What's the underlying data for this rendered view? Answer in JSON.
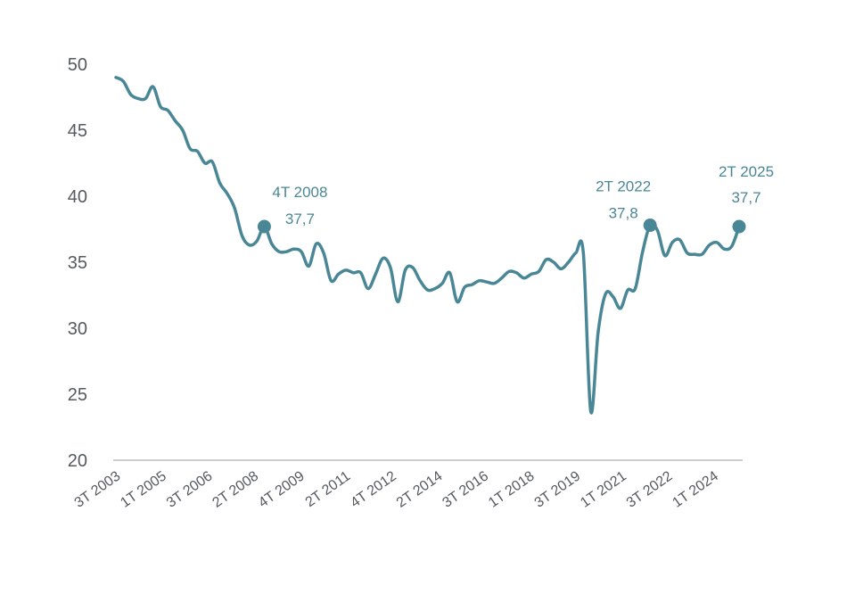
{
  "chart_data": {
    "type": "line",
    "title": "",
    "xlabel": "",
    "ylabel": "",
    "ylim": [
      20,
      50
    ],
    "y_ticks": [
      "20",
      "25",
      "30",
      "35",
      "40",
      "45",
      "50"
    ],
    "x_tick_labels": [
      "3T 2003",
      "1T 2005",
      "3T 2006",
      "2T 2008",
      "4T 2009",
      "2T 2011",
      "4T 2012",
      "2T 2014",
      "3T 2016",
      "1T 2018",
      "3T 2019",
      "1T 2021",
      "3T 2022",
      "1T 2024"
    ],
    "grid": false,
    "legend": "none",
    "colors": {
      "line": "#4a8796",
      "axis": "#cccccc",
      "text": "#555a60"
    },
    "series": [
      {
        "values": [
          49.0,
          48.7,
          47.7,
          47.4,
          47.4,
          48.3,
          46.8,
          46.5,
          45.7,
          45.0,
          43.6,
          43.4,
          42.5,
          42.6,
          41.0,
          40.2,
          39.1,
          37.0,
          36.3,
          36.6,
          37.7,
          36.4,
          35.8,
          35.8,
          36.0,
          35.8,
          34.7,
          36.4,
          35.7,
          33.6,
          34.1,
          34.4,
          34.2,
          34.2,
          33.0,
          34.1,
          35.3,
          34.6,
          32.0,
          34.4,
          34.6,
          33.6,
          32.9,
          33.0,
          33.4,
          34.2,
          32.0,
          33.1,
          33.3,
          33.6,
          33.5,
          33.4,
          33.8,
          34.3,
          34.2,
          33.8,
          34.1,
          34.3,
          35.2,
          35.0,
          34.5,
          35.0,
          35.7,
          35.7,
          23.7,
          29.7,
          32.6,
          32.4,
          31.5,
          32.9,
          33.0,
          35.8,
          37.8,
          37.4,
          35.5,
          36.5,
          36.7,
          35.7,
          35.6,
          35.6,
          36.3,
          36.5,
          36.0,
          36.2,
          37.7
        ]
      }
    ],
    "annotations": [
      {
        "index": 20,
        "period": "4T 2008",
        "value": "37,7"
      },
      {
        "index": 72,
        "period": "2T 2022",
        "value": "37,8"
      },
      {
        "index": 84,
        "period": "2T 2025",
        "value": "37,7"
      }
    ]
  }
}
